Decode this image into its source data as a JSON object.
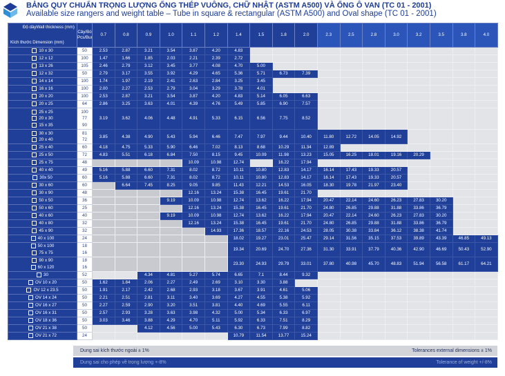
{
  "header": {
    "title_vn": "BẢNG QUY CHUẨN TRỌNG LƯỢNG ỐNG THÉP VUÔNG, CHỮ NHẬT (ASTM A500) VÀ ỐNG Ô VAN (TC 01 - 2001)",
    "title_en": "Available size rangers and weight table – Tube in square & rectangular (ASTM A500) and Oval shape (TC 01 - 2001)"
  },
  "table": {
    "corner_wall": "Độ dàyWall thickness (mm)",
    "corner_dim": "Kích thước Dimension (mm)",
    "bundle_header": "Cây/Bó Pcs/Bundle",
    "thicknesses": [
      "0.7",
      "0.8",
      "0.9",
      "1.0",
      "1.1",
      "1.2",
      "1.4",
      "1.5",
      "1.8",
      "2.0",
      "2.3",
      "2.5",
      "2.8",
      "3.0",
      "3.2",
      "3.5",
      "3.8",
      "4.0"
    ],
    "rows": [
      {
        "size": "10 x 30",
        "bundle": "50",
        "v": [
          "2.53",
          "2.87",
          "3.21",
          "3.54",
          "3.87",
          "4.20",
          "4.83",
          "",
          "",
          "",
          "",
          "",
          "",
          "",
          "",
          "",
          "",
          ""
        ]
      },
      {
        "size": "12 x 12",
        "bundle": "100",
        "v": [
          "1.47",
          "1.66",
          "1.85",
          "2.03",
          "2.21",
          "2.39",
          "2.72",
          "",
          "",
          "",
          "",
          "",
          "",
          "",
          "",
          "",
          "",
          ""
        ]
      },
      {
        "size": "13 x 26",
        "bundle": "105",
        "v": [
          "2.46",
          "2.79",
          "3.12",
          "3.45",
          "3.77",
          "4.08",
          "4.70",
          "5.00",
          "",
          "",
          "",
          "",
          "",
          "",
          "",
          "",
          "",
          ""
        ]
      },
      {
        "size": "12 x 32",
        "bundle": "50",
        "v": [
          "2.79",
          "3.17",
          "3.55",
          "3.92",
          "4.29",
          "4.65",
          "5.36",
          "5.71",
          "6.73",
          "7.39",
          "",
          "",
          "",
          "",
          "",
          "",
          "",
          ""
        ]
      },
      {
        "size": "14 x 14",
        "bundle": "100",
        "v": [
          "1.74",
          "1.97",
          "2.19",
          "2.41",
          "2.63",
          "2.84",
          "3.25",
          "3.45",
          "",
          "",
          "",
          "",
          "",
          "",
          "",
          "",
          "",
          ""
        ]
      },
      {
        "size": "16 x 16",
        "bundle": "100",
        "v": [
          "2.00",
          "2.27",
          "2.53",
          "2.79",
          "3.04",
          "3.29",
          "3.78",
          "4.01",
          "",
          "",
          "",
          "",
          "",
          "",
          "",
          "",
          "",
          ""
        ]
      },
      {
        "size": "20 x 20",
        "bundle": "100",
        "v": [
          "2.53",
          "2.87",
          "3.21",
          "3.54",
          "3.87",
          "4.20",
          "4.83",
          "5.14",
          "6.05",
          "6.63",
          "",
          "",
          "",
          "",
          "",
          "",
          "",
          ""
        ]
      },
      {
        "size": "20 x 25",
        "bundle": "64",
        "v": [
          "2.86",
          "3.25",
          "3.63",
          "4.01",
          "4.39",
          "4.76",
          "5.49",
          "5.85",
          "6.90",
          "7.57",
          "",
          "",
          "",
          "",
          "",
          "",
          "",
          ""
        ]
      },
      {
        "size": "25 x 25",
        "bundle": "100",
        "v": [
          "",
          "",
          "",
          "",
          "",
          "",
          "",
          "",
          "",
          "",
          "",
          "",
          "",
          "",
          "",
          "",
          "",
          ""
        ],
        "merge": {
          "size": [
            "25 x 25",
            "20 x 30",
            "15 x 35"
          ],
          "bundle": [
            "100",
            "77",
            "90"
          ],
          "v": [
            "3.19",
            "3.62",
            "4.06",
            "4.48",
            "4.91",
            "5.33",
            "6.15",
            "6.56",
            "7.75",
            "8.52",
            "",
            "",
            "",
            "",
            "",
            "",
            "",
            ""
          ]
        }
      },
      {
        "size": "30 x 30",
        "bundle": "81",
        "merge2": {
          "size": [
            "30 x 30",
            "20 x 40"
          ],
          "bundle": [
            "81",
            "72"
          ],
          "v": [
            "3.85",
            "4.38",
            "4.90",
            "5.43",
            "5.94",
            "6.46",
            "7.47",
            "7.97",
            "9.44",
            "10.40",
            "11.80",
            "12.72",
            "14.05",
            "14.92",
            "",
            "",
            "",
            ""
          ]
        }
      },
      {
        "size": "25 x 40",
        "bundle": "60",
        "v": [
          "4.18",
          "4.75",
          "5.33",
          "5.90",
          "6.46",
          "7.02",
          "8.13",
          "8.68",
          "10.29",
          "11.34",
          "12.89",
          "",
          "",
          "",
          "",
          "",
          "",
          ""
        ]
      },
      {
        "size": "25 x 50",
        "bundle": "72",
        "v": [
          "4.83",
          "5.51",
          "6.18",
          "6.84",
          "7.50",
          "8.15",
          "9.45",
          "10.09",
          "11.98",
          "13.23",
          "15.05",
          "16.25",
          "18.01",
          "19.16",
          "20.29",
          "",
          "",
          ""
        ]
      },
      {
        "size": "25 x 75",
        "bundle": "48",
        "v": [
          "",
          "",
          "",
          "",
          "10.09",
          "10.98",
          "12.74",
          "",
          "16.22",
          "17.94",
          "",
          "",
          "",
          "",
          "",
          "",
          "",
          ""
        ]
      },
      {
        "size": "40 x 40",
        "bundle": "49",
        "v": [
          "5.16",
          "5.88",
          "6.60",
          "7.31",
          "8.02",
          "8.72",
          "10.11",
          "10.80",
          "12.83",
          "14.17",
          "16.14",
          "17.43",
          "19.33",
          "20.57",
          "",
          "",
          "",
          ""
        ]
      },
      {
        "size": "30x 50",
        "bundle": "60",
        "v": [
          "5.16",
          "5.88",
          "6.60",
          "7.31",
          "8.02",
          "8.72",
          "10.11",
          "10.80",
          "12.83",
          "14.17",
          "16.14",
          "17.43",
          "19.33",
          "20.57",
          "",
          "",
          "",
          ""
        ]
      },
      {
        "size": "30 x 60",
        "bundle": "60",
        "v": [
          "",
          "6.64",
          "7.45",
          "8.25",
          "9.05",
          "9.85",
          "11.43",
          "12.21",
          "14.53",
          "16.05",
          "18.30",
          "19.78",
          "21.97",
          "23.40",
          "",
          "",
          "",
          ""
        ]
      },
      {
        "size": "30 x 90",
        "bundle": "48",
        "v": [
          "",
          "",
          "",
          "",
          "12.16",
          "13.24",
          "15.38",
          "16.45",
          "19.61",
          "21.70",
          "",
          "",
          "",
          "",
          "",
          "",
          "",
          ""
        ]
      },
      {
        "size": "50 x 50",
        "bundle": "36",
        "v": [
          "",
          "",
          "",
          "9.19",
          "10.09",
          "10.98",
          "12.74",
          "13.62",
          "16.22",
          "17.94",
          "20.47",
          "22.14",
          "24.60",
          "26.23",
          "27.83",
          "30.20",
          "",
          ""
        ]
      },
      {
        "size": "50 x 60",
        "bundle": "25",
        "v": [
          "",
          "",
          "",
          "",
          "12.16",
          "13.24",
          "15.38",
          "16.45",
          "19.61",
          "21.70",
          "24.80",
          "26.85",
          "29.88",
          "31.88",
          "33.86",
          "36.79",
          "",
          ""
        ]
      },
      {
        "size": "40 x 60",
        "bundle": "40",
        "v": [
          "",
          "",
          "",
          "9.19",
          "10.09",
          "10.98",
          "12.74",
          "13.62",
          "16.22",
          "17.94",
          "20.47",
          "22.14",
          "24.60",
          "26.23",
          "27.83",
          "30.20",
          "",
          ""
        ]
      },
      {
        "size": "40 x 80",
        "bundle": "32",
        "v": [
          "",
          "",
          "",
          "",
          "12.16",
          "13.24",
          "15.38",
          "16.45",
          "19.61",
          "21.70",
          "24.80",
          "26.85",
          "29.88",
          "31.88",
          "33.86",
          "36.79",
          "",
          ""
        ]
      },
      {
        "size": "45 x 90",
        "bundle": "32",
        "v": [
          "",
          "",
          "",
          "",
          "",
          "14.93",
          "17.36",
          "18.57",
          "22.16",
          "24.53",
          "28.05",
          "30.38",
          "33.84",
          "36.12",
          "38.38",
          "41.74",
          "",
          ""
        ]
      },
      {
        "size": "40 x 100",
        "bundle": "24",
        "v": [
          "",
          "",
          "",
          "",
          "",
          "",
          "18.02",
          "19.27",
          "23.01",
          "25.47",
          "29.14",
          "31.56",
          "35.15",
          "37.53",
          "39.89",
          "43.39",
          "46.85",
          "49.13"
        ]
      },
      {
        "size": "50 x 100",
        "bundle": "18",
        "merge3": {
          "size": [
            "50 x 100",
            "75 x 75"
          ],
          "bundle": [
            "18",
            "16"
          ],
          "v": [
            "",
            "",
            "",
            "",
            "",
            "",
            "19.34",
            "20.69",
            "24.70",
            "27.36",
            "31.30",
            "33.91",
            "37.79",
            "40.36",
            "42.90",
            "46.69",
            "50.43",
            "52.90"
          ]
        }
      },
      {
        "size": "90 x 90",
        "bundle": "18",
        "merge4": {
          "size": [
            "90 x 90",
            "60 x 120"
          ],
          "bundle": [
            "18",
            "16"
          ],
          "v": [
            "",
            "",
            "",
            "",
            "",
            "",
            "23.30",
            "24.93",
            "29.79",
            "33.01",
            "37.80",
            "40.98",
            "45.70",
            "48.83",
            "51.94",
            "56.58",
            "61.17",
            "64.21"
          ]
        }
      },
      {
        "size": "30",
        "bundle": "52",
        "v": [
          "",
          "",
          "4.34",
          "4.81",
          "5.27",
          "5.74",
          "6.65",
          "7.1",
          "8.44",
          "9.32",
          "",
          "",
          "",
          "",
          "",
          "",
          "",
          ""
        ]
      },
      {
        "size": "OV 10 x 20",
        "bundle": "50",
        "v": [
          "1.62",
          "1.84",
          "2.06",
          "2.27",
          "2.49",
          "2.69",
          "3.10",
          "3.30",
          "3.88",
          "",
          "",
          "",
          "",
          "",
          "",
          "",
          "",
          ""
        ]
      },
      {
        "size": "OV 12 x 23.5",
        "bundle": "50",
        "v": [
          "1.91",
          "2.17",
          "2.42",
          "2.68",
          "2.93",
          "3.18",
          "3.67",
          "3.91",
          "4.61",
          "5.06",
          "",
          "",
          "",
          "",
          "",
          "",
          "",
          ""
        ]
      },
      {
        "size": "OV 14 x 24",
        "bundle": "50",
        "v": [
          "2.21",
          "2.51",
          "2.81",
          "3.11",
          "3.40",
          "3.69",
          "4.27",
          "4.55",
          "5.38",
          "5.92",
          "",
          "",
          "",
          "",
          "",
          "",
          "",
          ""
        ]
      },
      {
        "size": "OV 16 x 27",
        "bundle": "50",
        "v": [
          "2.27",
          "2.59",
          "2.90",
          "3.20",
          "3.51",
          "3.81",
          "4.40",
          "4.69",
          "5.55",
          "6.11",
          "",
          "",
          "",
          "",
          "",
          "",
          "",
          ""
        ]
      },
      {
        "size": "OV 16 x 31",
        "bundle": "50",
        "v": [
          "2.57",
          "2.93",
          "3.28",
          "3.63",
          "3.98",
          "4.32",
          "5.00",
          "5.34",
          "6.33",
          "6.97",
          "",
          "",
          "",
          "",
          "",
          "",
          "",
          ""
        ]
      },
      {
        "size": "OV 18 x 36",
        "bundle": "50",
        "v": [
          "3.03",
          "3.46",
          "3.88",
          "4.29",
          "4.70",
          "5.11",
          "5.92",
          "6.33",
          "7.51",
          "8.29",
          "",
          "",
          "",
          "",
          "",
          "",
          "",
          ""
        ]
      },
      {
        "size": "OV 21 x 38",
        "bundle": "50",
        "v": [
          "",
          "",
          "4.12",
          "4.56",
          "5.00",
          "5.43",
          "6.30",
          "6.73",
          "7.99",
          "8.82",
          "",
          "",
          "",
          "",
          "",
          "",
          "",
          ""
        ]
      },
      {
        "size": "OV 21 x 72",
        "bundle": "24",
        "v": [
          "",
          "",
          "",
          "",
          "",
          "",
          "10.79",
          "11.54",
          "13.77",
          "15.24",
          "",
          "",
          "",
          "",
          "",
          "",
          "",
          ""
        ]
      }
    ]
  },
  "footer": {
    "tol_dim_vn": "Dung sai kích thước ngoài ± 1%",
    "tol_dim_en": "Tolerances external dimensions ± 1%",
    "tol_wt_vn": "Dung sai cho phép về trọng lượng +-8%",
    "tol_wt_en": "Tolerance of weight +/-8%"
  },
  "colors": {
    "navy": "#1f3f98",
    "grey": "#e3e4e8"
  }
}
